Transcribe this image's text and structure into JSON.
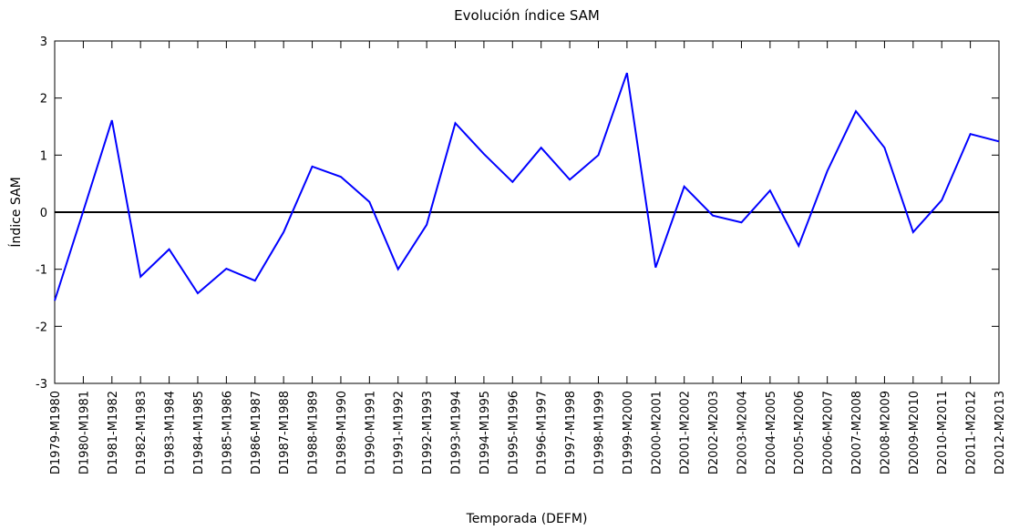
{
  "chart_data": {
    "type": "line",
    "title": "Evolución índice SAM",
    "x_label": "Temporada (DEFM)",
    "y_label": "Índice SAM",
    "categories": [
      "D1979-M1980",
      "D1980-M1981",
      "D1981-M1982",
      "D1982-M1983",
      "D1983-M1984",
      "D1984-M1985",
      "D1985-M1986",
      "D1986-M1987",
      "D1987-M1988",
      "D1988-M1989",
      "D1989-M1990",
      "D1990-M1991",
      "D1991-M1992",
      "D1992-M1993",
      "D1993-M1994",
      "D1994-M1995",
      "D1995-M1996",
      "D1996-M1997",
      "D1997-M1998",
      "D1998-M1999",
      "D1999-M2000",
      "D2000-M2001",
      "D2001-M2002",
      "D2002-M2003",
      "D2003-M2004",
      "D2004-M2005",
      "D2005-M2006",
      "D2006-M2007",
      "D2007-M2008",
      "D2008-M2009",
      "D2009-M2010",
      "D2010-M2011",
      "D2011-M2012",
      "D2012-M2013"
    ],
    "values": [
      -1.55,
      0.02,
      1.61,
      -1.13,
      -0.65,
      -1.42,
      -0.99,
      -1.2,
      -0.35,
      0.8,
      0.62,
      0.18,
      -1.0,
      -0.22,
      1.56,
      1.02,
      0.53,
      1.13,
      0.57,
      1.0,
      2.44,
      -0.97,
      0.45,
      -0.06,
      -0.18,
      0.38,
      -0.59,
      0.72,
      1.77,
      1.13,
      -0.35,
      0.21,
      1.37,
      1.24
    ],
    "color": "#0000ff",
    "zero_line": true,
    "ylim": [
      -3,
      3
    ],
    "yticks": [
      -3,
      -2,
      -1,
      0,
      1,
      2,
      3
    ]
  }
}
